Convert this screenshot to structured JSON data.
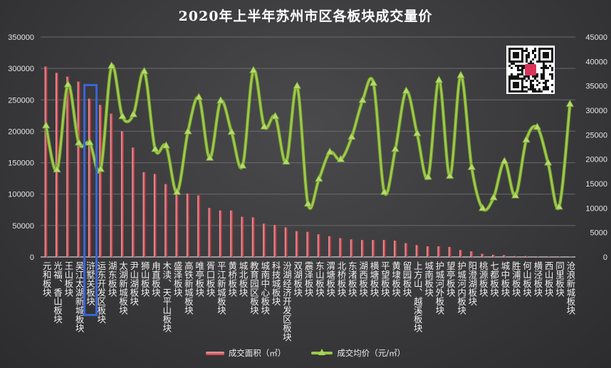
{
  "chart_data": {
    "type": "bar+line",
    "title": "2020年上半年苏州市区各板块成交量价",
    "categories": [
      "元和板块",
      "光福、香山板块",
      "王山板块",
      "吴江太湖新城板块",
      "浒墅关板块",
      "运东开发区板块",
      "湖东板块",
      "太湖新城板块",
      "尹山湖板块",
      "狮山板块",
      "甪直板块",
      "木渎、天平山板块",
      "盛泽板块",
      "高铁新城板块",
      "唯亭板块",
      "胥口板块",
      "平江新城板块",
      "黄桥板块",
      "城北板块",
      "教育园区板块",
      "城南中心板块",
      "科技城板块",
      "汾湖经济开发区板块",
      "双湖板块",
      "震泽板块",
      "东山板块",
      "渭塘板块",
      "北桥板块",
      "东渚板块",
      "湖西板块",
      "横塘板块",
      "平望板块",
      "黄埭板块",
      "留园板块",
      "上方山、越溪板块",
      "城南板块",
      "护城河外板块",
      "望亭板块",
      "护城河内板块",
      "阳澄湖板块",
      "桃源板块",
      "七都板块",
      "城中板块",
      "胜浦板块",
      "何山板块",
      "横泾板块",
      "西山板块",
      "同里板块",
      "沧浪新城板块"
    ],
    "series": [
      {
        "name": "成交面积（㎡）",
        "type": "bar",
        "axis": "left",
        "color": "#d05a62",
        "values": [
          303000,
          293000,
          287000,
          279000,
          252000,
          242000,
          228000,
          200000,
          174000,
          135000,
          132000,
          116000,
          101000,
          101000,
          98000,
          78000,
          74000,
          74000,
          64000,
          63000,
          53000,
          51000,
          47000,
          41000,
          40000,
          36000,
          33000,
          30000,
          28000,
          27000,
          27000,
          27000,
          26000,
          22000,
          19000,
          17000,
          17000,
          16000,
          11000,
          9000,
          5000,
          3500,
          3000,
          1500,
          1500,
          1000,
          1000,
          800,
          500
        ]
      },
      {
        "name": "成交均价（元/㎡）",
        "type": "line",
        "axis": "right",
        "color": "#9cc84a",
        "values": [
          26800,
          17800,
          35200,
          23300,
          23300,
          17900,
          39000,
          28700,
          29100,
          37900,
          22000,
          22700,
          13200,
          25600,
          32600,
          20200,
          31900,
          25500,
          18600,
          38100,
          26600,
          28700,
          19400,
          34900,
          10800,
          15900,
          21400,
          19900,
          24500,
          32000,
          35500,
          13200,
          22000,
          33900,
          25200,
          16300,
          36100,
          16500,
          37100,
          18300,
          9900,
          12100,
          19500,
          12500,
          23900,
          26500,
          19200,
          10200,
          31200
        ]
      }
    ],
    "left_axis": {
      "ylim": [
        0,
        350000
      ],
      "ticks": [
        "0",
        "50000",
        "100000",
        "150000",
        "200000",
        "250000",
        "300000",
        "350000"
      ]
    },
    "right_axis": {
      "ylim": [
        0,
        45000
      ],
      "ticks": [
        "0",
        "5000",
        "10000",
        "15000",
        "20000",
        "25000",
        "30000",
        "35000",
        "40000",
        "45000"
      ]
    },
    "grid": true,
    "legend": "bottom",
    "highlighted_category": "浒墅关板块",
    "highlight_color": "#3a64d8"
  }
}
